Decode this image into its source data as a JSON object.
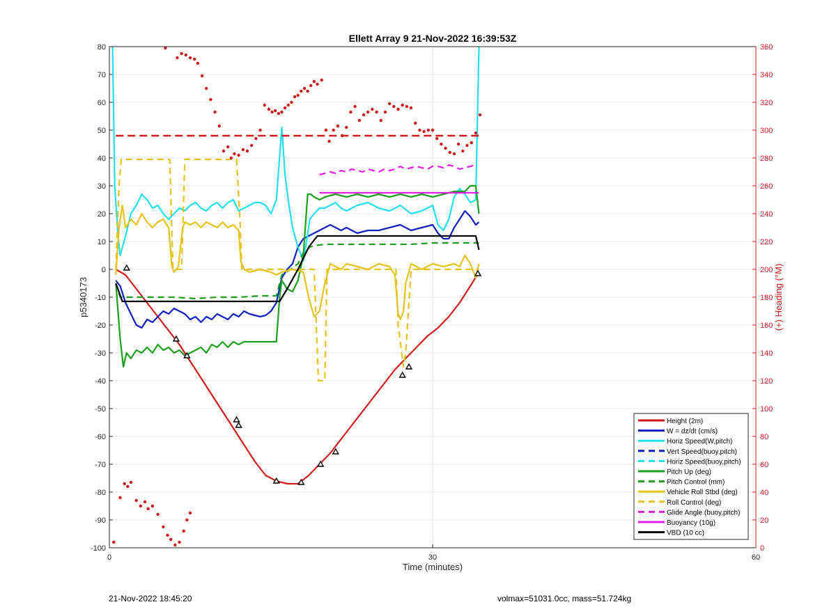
{
  "footer": {
    "timestamp": "21-Nov-2022 18:45:20",
    "mass_info": "volmax=51031.0cc, mass=51.724kg"
  },
  "chart_data": {
    "type": "line",
    "title": "Ellett Array 9 21-Nov-2022 16:39:53Z",
    "xlabel": "Time (minutes)",
    "ylabel": "p5340173",
    "y2label": "(+) Heading (°M)",
    "xlim": [
      0,
      60
    ],
    "ylim": [
      -100,
      80
    ],
    "y2lim": [
      0,
      360
    ],
    "xticks": [
      0,
      30,
      60
    ],
    "yticks": [
      -100,
      -90,
      -80,
      -70,
      -60,
      -50,
      -40,
      -30,
      -20,
      -10,
      0,
      10,
      20,
      30,
      40,
      50,
      60,
      70,
      80
    ],
    "y2ticks": [
      0,
      20,
      40,
      60,
      80,
      100,
      120,
      140,
      160,
      180,
      200,
      220,
      240,
      260,
      280,
      300,
      320,
      340,
      360
    ],
    "grid": true,
    "legend_position": "bottom-right",
    "series": [
      {
        "name": "Height (2m)",
        "color": "#d11a1a",
        "dash": false,
        "x": [
          0.6,
          1.5,
          2.5,
          3.5,
          4.5,
          5.5,
          6.5,
          7.5,
          8.5,
          9.5,
          10.5,
          11.5,
          12.5,
          13.5,
          14.5,
          15.5,
          16.5,
          17.5,
          18.5,
          19.5,
          20.5,
          21.5,
          22.5,
          23.5,
          24.5,
          25.5,
          26.5,
          27.5,
          28.5,
          29.5,
          30.5,
          31.5,
          32.5,
          33.5,
          34.3
        ],
        "y": [
          0,
          -2,
          -7,
          -12,
          -17,
          -22,
          -27,
          -33,
          -39,
          -45,
          -51,
          -57,
          -63,
          -69,
          -74,
          -76,
          -77,
          -77,
          -74,
          -70,
          -66,
          -61,
          -56,
          -51,
          -46,
          -41,
          -36,
          -32,
          -28,
          -24,
          -21,
          -17,
          -12,
          -6,
          -1
        ]
      },
      {
        "name": "W = dz/dt (cm/s)",
        "color": "#1020c0",
        "dash": false,
        "x": [
          0.6,
          1.0,
          1.5,
          2.0,
          2.5,
          3.0,
          3.5,
          4.0,
          4.5,
          5.0,
          5.5,
          6.0,
          6.5,
          7.0,
          7.5,
          8.0,
          8.5,
          9.0,
          9.5,
          10.0,
          10.5,
          11.0,
          11.5,
          12.0,
          12.5,
          13.0,
          13.5,
          14.0,
          14.5,
          15.0,
          15.5,
          16.0,
          16.5,
          17.0,
          17.5,
          18.0,
          18.5,
          19.0,
          19.5,
          20.0,
          20.5,
          21.0,
          21.5,
          22.0,
          23.0,
          24.0,
          25.0,
          26.0,
          27.0,
          28.0,
          29.0,
          30.0,
          30.5,
          31.0,
          31.5,
          32.0,
          32.5,
          33.0,
          33.5,
          34.0,
          34.3
        ],
        "y": [
          -4,
          -6,
          -12,
          -16,
          -20,
          -21,
          -18,
          -19,
          -17,
          -15,
          -16,
          -14,
          -15,
          -16,
          -18,
          -17,
          -19,
          -17,
          -18,
          -16,
          -17,
          -18,
          -16,
          -17,
          -15,
          -16,
          -16.5,
          -17,
          -16.5,
          -15,
          -12,
          -3,
          0,
          2,
          8,
          11,
          12,
          13,
          14,
          15,
          16,
          15,
          14,
          15,
          13,
          14,
          14,
          15,
          16,
          14,
          15,
          16,
          13,
          11,
          11,
          15,
          18,
          21,
          19,
          16,
          17
        ]
      },
      {
        "name": "Horiz Speed(W,pitch)",
        "color": "#20e0f0",
        "dash": false,
        "x": [
          0.3,
          0.5,
          0.8,
          1.0,
          1.5,
          2.0,
          2.5,
          3.0,
          3.5,
          4.0,
          4.5,
          5.0,
          5.5,
          6.0,
          6.5,
          7.0,
          7.5,
          8.0,
          8.5,
          9.0,
          9.5,
          10.0,
          10.5,
          11.0,
          11.5,
          12.0,
          12.5,
          13.0,
          13.5,
          14.0,
          14.5,
          15.0,
          15.5,
          16.0,
          16.3,
          16.6,
          17.0,
          17.5,
          18.0,
          18.3,
          18.6,
          19.0,
          19.5,
          20.0,
          20.5,
          21.0,
          21.5,
          22.0,
          23.0,
          24.0,
          25.0,
          26.0,
          27.0,
          28.0,
          29.0,
          30.0,
          30.5,
          31.0,
          31.5,
          32.0,
          32.5,
          33.0,
          33.5,
          34.0,
          34.3
        ],
        "y": [
          80,
          30,
          12,
          5,
          12,
          20,
          23,
          27,
          25,
          22,
          23,
          20,
          18,
          20,
          22,
          21,
          23,
          24,
          22,
          21,
          23,
          24,
          22,
          24,
          25,
          21,
          22,
          23,
          24,
          24,
          23,
          20,
          25,
          51,
          34,
          25,
          15,
          8,
          3,
          10,
          18,
          20,
          22,
          22,
          23,
          24,
          22,
          21,
          23,
          24,
          22,
          21,
          23,
          20,
          21,
          23,
          16,
          14,
          18,
          26,
          29,
          27,
          24,
          25,
          80
        ]
      },
      {
        "name": "Vert Speed(buoy,pitch)",
        "color": "#1020c0",
        "dash": true,
        "x": [],
        "y": []
      },
      {
        "name": "Horiz Speed(buoy,pitch)",
        "color": "#20e0f0",
        "dash": true,
        "x": [],
        "y": []
      },
      {
        "name": "Pitch Up (deg)",
        "color": "#1ca01c",
        "dash": false,
        "x": [
          0.6,
          1.0,
          1.3,
          1.6,
          2.0,
          2.5,
          3.0,
          3.5,
          4.0,
          4.5,
          5.0,
          5.5,
          6.0,
          6.5,
          7.0,
          7.5,
          8.0,
          8.5,
          9.0,
          9.5,
          10.0,
          10.5,
          11.0,
          11.5,
          12.0,
          12.5,
          13.0,
          13.5,
          14.0,
          14.5,
          15.0,
          15.5,
          15.8,
          16.0,
          16.5,
          17.0,
          17.5,
          18.0,
          18.4,
          18.7,
          19.0,
          19.5,
          20.0,
          21.0,
          22.0,
          23.0,
          24.0,
          25.0,
          26.0,
          27.0,
          28.0,
          29.0,
          30.0,
          31.0,
          32.0,
          33.0,
          33.5,
          34.0,
          34.3
        ],
        "y": [
          -5,
          -25,
          -35,
          -30,
          -32,
          -29,
          -30,
          -28,
          -30,
          -27,
          -29,
          -28,
          -30,
          -29,
          -31,
          -30,
          -29,
          -28,
          -30,
          -27,
          -28,
          -26,
          -28,
          -26,
          -27,
          -26,
          -26,
          -26,
          -26,
          -26,
          -26,
          -26,
          -10,
          -4,
          -7,
          -8,
          -4,
          5,
          27,
          27,
          26,
          25,
          26,
          27,
          26,
          27,
          26,
          27,
          26,
          27,
          26,
          27,
          26,
          27,
          28,
          28,
          30,
          30,
          20
        ]
      },
      {
        "name": "Pitch Control (mm)",
        "color": "#1ca01c",
        "dash": true,
        "x": [
          0.6,
          1.0,
          2.0,
          4.0,
          6.0,
          8.0,
          10.0,
          12.0,
          14.0,
          15.5,
          16.0,
          16.8,
          17.5,
          18.0,
          18.6,
          19.0,
          20.0,
          22.0,
          24.0,
          26.0,
          28.0,
          30.0,
          32.0,
          34.3
        ],
        "y": [
          -5,
          -10,
          -10,
          -10,
          -10,
          -10.5,
          -10,
          -10,
          -9.5,
          -9.5,
          -2,
          0,
          2,
          6,
          8,
          8.5,
          9,
          9,
          9,
          9,
          9,
          9.5,
          9.5,
          9.5
        ]
      },
      {
        "name": "Vehicle Roll Stbd (deg)",
        "color": "#e6c21a",
        "dash": false,
        "x": [
          0.6,
          0.9,
          1.2,
          1.5,
          2.0,
          2.5,
          3.0,
          3.5,
          4.0,
          4.5,
          5.0,
          5.5,
          5.8,
          6.0,
          6.4,
          6.8,
          7.0,
          7.5,
          8.0,
          8.5,
          9.0,
          9.5,
          10.0,
          10.5,
          11.0,
          11.5,
          12.0,
          12.2,
          12.5,
          13.0,
          14.0,
          15.0,
          15.5,
          16.0,
          17.0,
          18.0,
          18.5,
          19.0,
          19.5,
          20.0,
          20.5,
          21.0,
          21.5,
          22.0,
          23.0,
          24.0,
          25.0,
          26.0,
          26.5,
          26.8,
          27.0,
          27.3,
          27.5,
          28.0,
          28.5,
          29.0,
          30.0,
          31.0,
          32.0,
          32.5,
          33.0,
          33.5,
          34.0,
          34.3
        ],
        "y": [
          -2,
          15,
          23,
          15,
          18,
          16,
          20,
          17,
          15,
          17,
          18,
          15,
          1,
          -1,
          1,
          15,
          17,
          16,
          17,
          15,
          17,
          16,
          15,
          17,
          15,
          16,
          14,
          3,
          0,
          -1,
          0,
          -1,
          -2,
          -1,
          0,
          -1,
          -10,
          -17,
          -15,
          -5,
          2,
          1,
          0,
          2,
          1,
          0,
          2,
          1,
          -2,
          -16,
          -18,
          -15,
          -5,
          2,
          1,
          0,
          2,
          1,
          2,
          1,
          5,
          2,
          -3,
          2
        ]
      },
      {
        "name": "Roll Control (deg)",
        "color": "#e6c21a",
        "dash": true,
        "x": [
          0.6,
          0.9,
          1.1,
          2.0,
          4.0,
          5.6,
          5.9,
          6.7,
          7.0,
          8.0,
          11.0,
          11.8,
          12.1,
          12.3,
          14.0,
          16.0,
          18.0,
          19.0,
          19.2,
          19.4,
          20.0,
          20.2,
          20.5,
          22.0,
          24.0,
          26.0,
          26.6,
          26.8,
          27.3,
          27.5,
          28.0,
          30.0,
          32.0,
          34.3
        ],
        "y": [
          0,
          30,
          39.5,
          39.5,
          39.5,
          39.5,
          0,
          0,
          39.5,
          39.5,
          39.5,
          39.5,
          20,
          0,
          0,
          0,
          0,
          0,
          -20,
          -40,
          -40,
          0,
          0,
          0,
          0,
          0,
          0,
          -20,
          -35,
          -30,
          0,
          0,
          0,
          0
        ]
      },
      {
        "name": "Glide Angle (buoy,pitch)",
        "color": "#e020e0",
        "dash": true,
        "x": [
          19.5,
          20.0,
          20.5,
          21.0,
          21.5,
          22.0,
          22.5,
          23.0,
          23.5,
          24.0,
          24.5,
          25.0,
          25.5,
          26.0,
          26.5,
          27.0,
          27.5,
          28.0,
          28.5,
          29.0,
          29.5,
          30.0,
          30.5,
          31.0,
          31.5,
          32.0,
          32.5,
          33.0,
          33.5,
          34.0
        ],
        "y": [
          34,
          34.5,
          35,
          34.5,
          35.5,
          35,
          36,
          35.5,
          35,
          36,
          35.5,
          35,
          36,
          35.5,
          36,
          37,
          36,
          36.5,
          37,
          36.5,
          36,
          37,
          37,
          36.5,
          37.5,
          37,
          36,
          36.5,
          37,
          37.5
        ]
      },
      {
        "name": "Buoyancy (10g)",
        "color": "#e020e0",
        "dash": false,
        "x": [
          19.5,
          34.3
        ],
        "y": [
          27.5,
          27.5
        ]
      },
      {
        "name": "VBD (10 cc)",
        "color": "#000000",
        "dash": false,
        "x": [
          0.6,
          1.2,
          4.0,
          8.0,
          12.0,
          15.8,
          16.5,
          17.5,
          18.5,
          19.3,
          20.0,
          24.0,
          28.0,
          32.0,
          34.0,
          34.3
        ],
        "y": [
          -5,
          -11.5,
          -11.5,
          -11.5,
          -11.5,
          -11.5,
          -7,
          0,
          8,
          12,
          12,
          12,
          12,
          12,
          12,
          7
        ]
      }
    ],
    "heading_reference": {
      "color": "#d11a1a",
      "dash": true,
      "x": [
        0.6,
        34.3
      ],
      "heading": [
        296,
        296
      ]
    },
    "heading_points": {
      "color": "#d11a1a",
      "x": [
        0.4,
        1.0,
        1.4,
        1.7,
        2.0,
        2.5,
        2.9,
        3.3,
        3.6,
        4.0,
        4.5,
        5.0,
        5.4,
        5.7,
        6.1,
        6.5,
        6.9,
        7.2,
        7.5,
        5.2,
        6.3,
        6.7,
        7.1,
        7.5,
        7.9,
        8.2,
        8.6,
        9.0,
        9.4,
        9.8,
        10.2,
        10.6,
        11.0,
        11.3,
        11.6,
        12.0,
        12.4,
        12.8,
        13.2,
        13.6,
        14.0,
        14.4,
        14.8,
        15.1,
        15.4,
        15.7,
        16.0,
        16.3,
        16.6,
        16.9,
        17.2,
        17.5,
        17.8,
        18.1,
        18.4,
        18.7,
        19.0,
        19.3,
        19.7,
        20.1,
        20.4,
        20.8,
        21.2,
        21.6,
        22.0,
        22.4,
        22.8,
        23.2,
        23.6,
        24.0,
        24.4,
        24.8,
        25.2,
        25.6,
        26.0,
        26.4,
        26.8,
        27.2,
        27.6,
        28.0,
        28.4,
        28.8,
        29.2,
        29.6,
        30.0,
        30.4,
        30.8,
        31.2,
        31.6,
        32.0,
        32.4,
        32.8,
        33.2,
        33.6,
        34.0,
        34.4
      ],
      "heading": [
        4,
        36,
        46,
        44,
        47,
        34,
        30,
        33,
        28,
        30,
        24,
        15,
        9,
        6,
        2,
        4,
        12,
        20,
        25,
        359,
        352,
        355,
        354,
        352,
        351,
        348,
        339,
        330,
        322,
        313,
        303,
        285,
        288,
        280,
        283,
        282,
        286,
        285,
        289,
        294,
        300,
        318,
        315,
        313,
        314,
        312,
        313,
        316,
        318,
        320,
        324,
        325,
        328,
        330,
        328,
        332,
        335,
        333,
        336,
        300,
        292,
        300,
        303,
        296,
        302,
        313,
        317,
        307,
        311,
        313,
        315,
        313,
        307,
        313,
        319,
        317,
        315,
        318,
        317,
        316,
        305,
        300,
        299,
        300,
        300,
        294,
        290,
        287,
        284,
        283,
        290,
        285,
        289,
        291,
        298,
        311
      ]
    },
    "markers": {
      "x": [
        1.6,
        12.0,
        7.2,
        11.8,
        15.5,
        17.8,
        19.6,
        21.0,
        27.2,
        27.8,
        34.2,
        6.2
      ],
      "y": [
        0.5,
        -56,
        -31,
        -54,
        -76,
        -76.5,
        -70,
        -65.5,
        -38,
        -35,
        -1.5,
        -25
      ]
    }
  }
}
